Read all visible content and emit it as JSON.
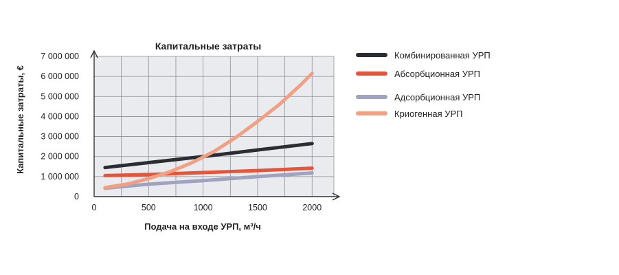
{
  "chart_data": {
    "type": "line",
    "title": "Капитальные затраты",
    "xlabel": "Подача на входе УРП, м³/ч",
    "ylabel": "Капитальные затраты, €",
    "xlim": [
      0,
      2200
    ],
    "ylim": [
      0,
      7000000
    ],
    "x_ticks": [
      0,
      500,
      1000,
      1500,
      2000
    ],
    "x_tick_labels": [
      "0",
      "500",
      "1000",
      "1500",
      "2000"
    ],
    "y_ticks": [
      0,
      1000000,
      2000000,
      3000000,
      4000000,
      5000000,
      6000000,
      7000000
    ],
    "y_tick_labels": [
      "0",
      "1 000 000",
      "2 000 000",
      "3 000 000",
      "4 000 000",
      "5 000 000",
      "6 000 000",
      "7 000 000"
    ],
    "grid": true,
    "legend_position": "right",
    "series": [
      {
        "name": "Комбинированная УРП",
        "color": "#2a2d33",
        "x": [
          100,
          500,
          1000,
          1500,
          2000
        ],
        "y": [
          1450000,
          1700000,
          2000000,
          2330000,
          2650000
        ]
      },
      {
        "name": "Абсорбционная УРП",
        "color": "#e5553a",
        "x": [
          100,
          500,
          1000,
          1500,
          2000
        ],
        "y": [
          1050000,
          1100000,
          1200000,
          1300000,
          1420000
        ]
      },
      {
        "name": "Адсорбционная УРП",
        "color": "#9fa3bf",
        "x": [
          100,
          500,
          1000,
          1500,
          2000
        ],
        "y": [
          420000,
          620000,
          800000,
          1000000,
          1180000
        ]
      },
      {
        "name": "Криогенная УРП",
        "color": "#f2a083",
        "x": [
          100,
          300,
          500,
          700,
          900,
          1100,
          1300,
          1500,
          1700,
          1900,
          2000
        ],
        "y": [
          450000,
          620000,
          900000,
          1250000,
          1700000,
          2250000,
          2950000,
          3750000,
          4600000,
          5600000,
          6150000
        ]
      }
    ]
  }
}
